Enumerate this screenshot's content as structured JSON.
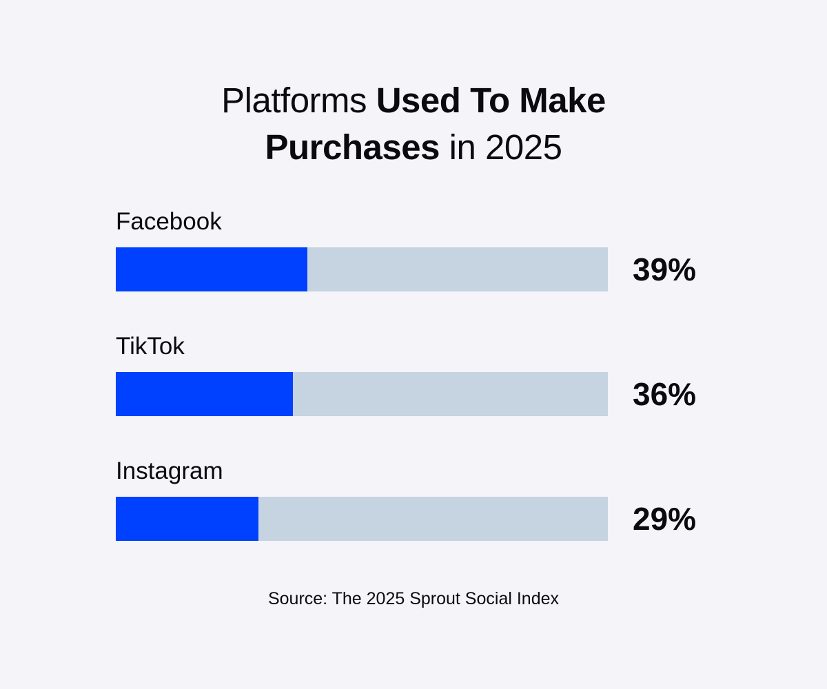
{
  "title": {
    "part1": "Platforms ",
    "part2_bold": "Used To Make",
    "part3_bold": "Purchases",
    "part4": " in 2025"
  },
  "source": "Source: The 2025 Sprout Social Index",
  "colors": {
    "background": "#f4f4f9",
    "fill": "#0040ff",
    "track": "#c6d3e0",
    "text": "#0b0b0f"
  },
  "chart_data": {
    "type": "bar",
    "orientation": "horizontal",
    "categories": [
      "Facebook",
      "TikTok",
      "Instagram"
    ],
    "values": [
      39,
      36,
      29
    ],
    "value_labels": [
      "39%",
      "36%",
      "29%"
    ],
    "xlim": [
      0,
      100
    ],
    "unit": "%",
    "grid": false,
    "legend": "none"
  }
}
